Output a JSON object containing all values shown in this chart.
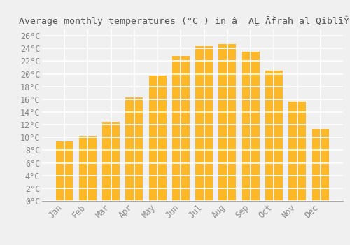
{
  "title": "Average monthly temperatures (°C ) in â  AḼ Āḟrah al QiblīŶyah",
  "months": [
    "Jan",
    "Feb",
    "Mar",
    "Apr",
    "May",
    "Jun",
    "Jul",
    "Aug",
    "Sep",
    "Oct",
    "Nov",
    "Dec"
  ],
  "values": [
    9.4,
    10.3,
    12.4,
    16.3,
    19.7,
    22.8,
    24.4,
    24.7,
    23.5,
    20.5,
    15.7,
    11.3
  ],
  "bar_color_top": "#FDB827",
  "bar_color_bottom": "#F5A000",
  "background_color": "#f0f0f0",
  "grid_color": "#ffffff",
  "ytick_labels": [
    "0°C",
    "2°C",
    "4°C",
    "6°C",
    "8°C",
    "10°C",
    "12°C",
    "14°C",
    "16°C",
    "18°C",
    "20°C",
    "22°C",
    "24°C",
    "26°C"
  ],
  "ytick_values": [
    0,
    2,
    4,
    6,
    8,
    10,
    12,
    14,
    16,
    18,
    20,
    22,
    24,
    26
  ],
  "ylim": [
    0,
    27
  ],
  "title_fontsize": 9.5,
  "tick_fontsize": 8.5,
  "label_color": "#888888",
  "title_color": "#555555"
}
